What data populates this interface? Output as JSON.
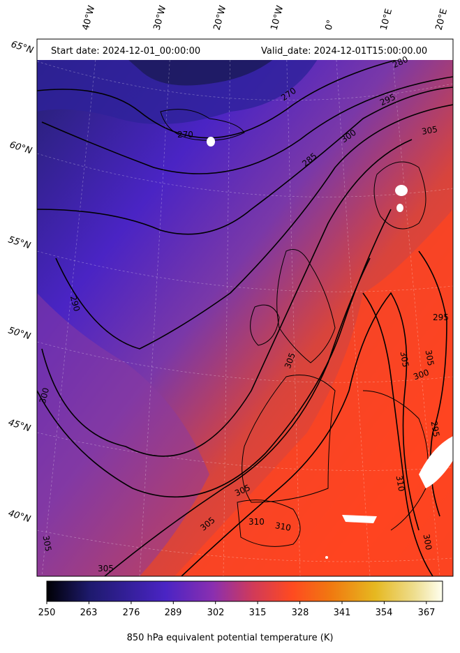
{
  "map": {
    "start_date": "Start date: 2024-12-01_00:00:00",
    "valid_date": "Valid_date: 2024-12-01T15:00:00.00",
    "latitude_labels": [
      "65°N",
      "60°N",
      "55°N",
      "50°N",
      "45°N",
      "40°N"
    ],
    "longitude_labels": [
      "40°W",
      "30°W",
      "20°W",
      "10°W",
      "0°",
      "10°E",
      "20°E"
    ],
    "contour_labels": [
      "270",
      "270",
      "280",
      "285",
      "290",
      "295",
      "295",
      "295",
      "300",
      "300",
      "300",
      "300",
      "305",
      "305",
      "305",
      "305",
      "305",
      "305",
      "305",
      "310",
      "310",
      "310"
    ],
    "colors": {
      "cold": "#1c1a5c",
      "mid": "#4a24c4",
      "warm": "#e0443c",
      "hot": "#ff4420",
      "contour": "#000000"
    }
  },
  "colorbar": {
    "title": "850 hPa equivalent potential temperature (K)",
    "ticks": [
      "250",
      "263",
      "276",
      "289",
      "302",
      "315",
      "328",
      "341",
      "354",
      "367"
    ],
    "range": [
      250,
      372
    ],
    "colors": [
      "#000004",
      "#1e1a6e",
      "#4a24c4",
      "#8a2fb0",
      "#d03a5a",
      "#ff4a20",
      "#f07a10",
      "#e6b820",
      "#eede90",
      "#fffff0"
    ]
  }
}
